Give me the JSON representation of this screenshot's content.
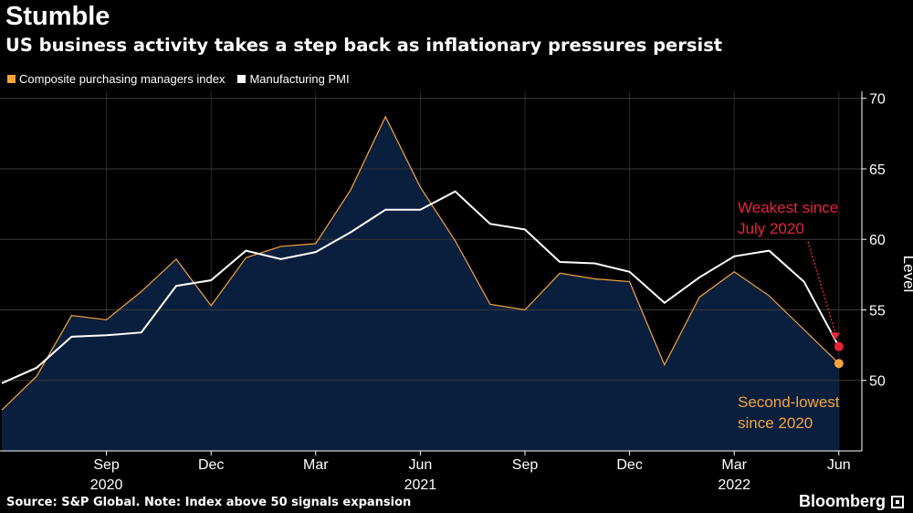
{
  "header": {
    "title": "Stumble",
    "subtitle": "US business activity takes a step back as inflationary pressures persist"
  },
  "legend": [
    {
      "label": "Composite purchasing managers index",
      "color": "#f5a53a"
    },
    {
      "label": "Manufacturing PMI",
      "color": "#ffffff"
    }
  ],
  "footer": {
    "source": "Source: S&P Global. Note: Index above 50 signals expansion",
    "brand": "Bloomberg"
  },
  "chart_data": {
    "type": "area",
    "title": "Stumble",
    "ylabel": "Level",
    "ylim": [
      45,
      70.5
    ],
    "yticks": [
      50,
      55,
      60,
      65,
      70
    ],
    "x_months": [
      "2020-06",
      "2020-07",
      "2020-08",
      "2020-09",
      "2020-10",
      "2020-11",
      "2020-12",
      "2021-01",
      "2021-02",
      "2021-03",
      "2021-04",
      "2021-05",
      "2021-06",
      "2021-07",
      "2021-08",
      "2021-09",
      "2021-10",
      "2021-11",
      "2021-12",
      "2022-01",
      "2022-02",
      "2022-03",
      "2022-04",
      "2022-05",
      "2022-06"
    ],
    "xticks": [
      {
        "label": "Sep",
        "month_index": 3
      },
      {
        "label": "Dec",
        "month_index": 6
      },
      {
        "label": "Mar",
        "month_index": 9
      },
      {
        "label": "Jun",
        "month_index": 12
      },
      {
        "label": "Sep",
        "month_index": 15
      },
      {
        "label": "Dec",
        "month_index": 18
      },
      {
        "label": "Mar",
        "month_index": 21
      },
      {
        "label": "Jun",
        "month_index": 24
      }
    ],
    "year_labels": [
      {
        "label": "2020",
        "month_index": 3
      },
      {
        "label": "2021",
        "month_index": 12
      },
      {
        "label": "2022",
        "month_index": 21
      }
    ],
    "series": [
      {
        "name": "Composite purchasing managers index",
        "color": "#f5a53a",
        "fill": "#0a1f3d",
        "values": [
          47.9,
          50.3,
          54.6,
          54.3,
          56.3,
          58.6,
          55.3,
          58.7,
          59.5,
          59.7,
          63.5,
          68.7,
          63.7,
          59.9,
          55.4,
          55.0,
          57.6,
          57.2,
          57.0,
          51.1,
          55.9,
          57.7,
          56.0,
          53.6,
          51.2
        ]
      },
      {
        "name": "Manufacturing PMI",
        "color": "#ffffff",
        "values": [
          49.8,
          50.9,
          53.1,
          53.2,
          53.4,
          56.7,
          57.1,
          59.2,
          58.6,
          59.1,
          60.5,
          62.1,
          62.1,
          63.4,
          61.1,
          60.7,
          58.4,
          58.3,
          57.7,
          55.5,
          57.3,
          58.8,
          59.2,
          57.0,
          52.4
        ]
      }
    ],
    "annotations": [
      {
        "text_lines": [
          "Weakest since",
          "July 2020"
        ],
        "color": "#e8243c",
        "series": "Manufacturing PMI",
        "value": 52.4
      },
      {
        "text_lines": [
          "Second-lowest",
          "since 2020"
        ],
        "color": "#f5a53a",
        "series": "Composite purchasing managers index",
        "value": 51.2
      }
    ]
  }
}
